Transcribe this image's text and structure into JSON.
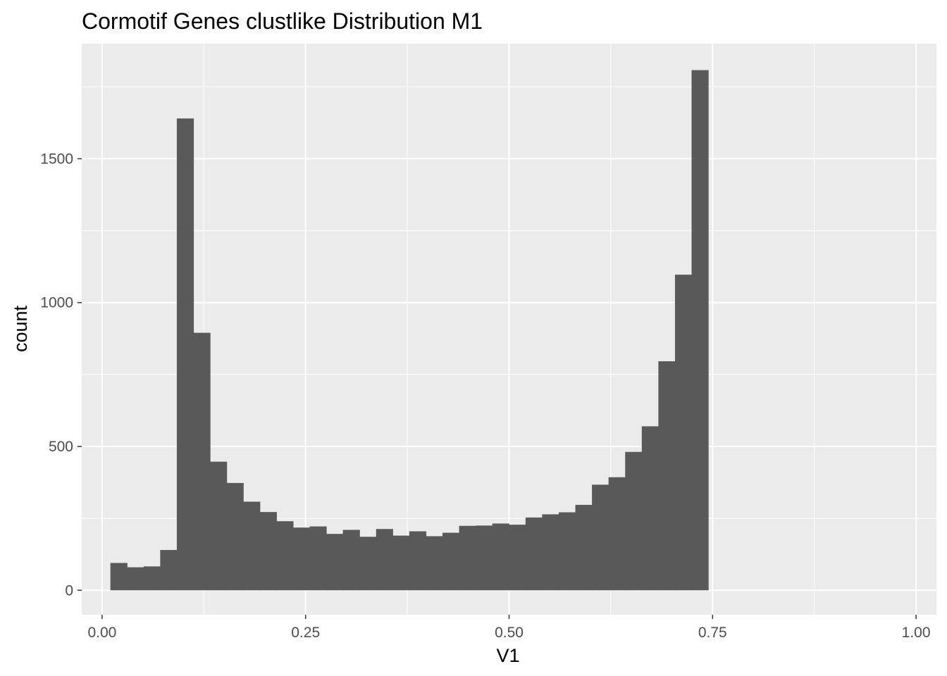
{
  "chart_data": {
    "type": "bar",
    "title": "Cormotif Genes clustlike Distribution M1",
    "xlabel": "V1",
    "ylabel": "count",
    "xlim": [
      -0.025,
      1.025
    ],
    "ylim": [
      -85,
      1900
    ],
    "x_ticks": [
      0.0,
      0.25,
      0.5,
      0.75,
      1.0
    ],
    "x_tick_labels": [
      "0.00",
      "0.25",
      "0.50",
      "0.75",
      "1.00"
    ],
    "y_ticks": [
      0,
      500,
      1000,
      1500
    ],
    "y_tick_labels": [
      "0",
      "500",
      "1000",
      "1500"
    ],
    "grid": true,
    "bin_width": 0.0204,
    "bins": [
      {
        "x0": 0.0102,
        "count": 95
      },
      {
        "x0": 0.0306,
        "count": 80
      },
      {
        "x0": 0.051,
        "count": 83
      },
      {
        "x0": 0.0714,
        "count": 140
      },
      {
        "x0": 0.0918,
        "count": 1640
      },
      {
        "x0": 0.1122,
        "count": 895
      },
      {
        "x0": 0.1326,
        "count": 447
      },
      {
        "x0": 0.153,
        "count": 373
      },
      {
        "x0": 0.1734,
        "count": 308
      },
      {
        "x0": 0.1938,
        "count": 272
      },
      {
        "x0": 0.2142,
        "count": 240
      },
      {
        "x0": 0.2346,
        "count": 218
      },
      {
        "x0": 0.255,
        "count": 222
      },
      {
        "x0": 0.2754,
        "count": 196
      },
      {
        "x0": 0.2958,
        "count": 210
      },
      {
        "x0": 0.3162,
        "count": 186
      },
      {
        "x0": 0.3366,
        "count": 213
      },
      {
        "x0": 0.357,
        "count": 190
      },
      {
        "x0": 0.3774,
        "count": 205
      },
      {
        "x0": 0.3978,
        "count": 188
      },
      {
        "x0": 0.4182,
        "count": 200
      },
      {
        "x0": 0.4386,
        "count": 224
      },
      {
        "x0": 0.459,
        "count": 225
      },
      {
        "x0": 0.4794,
        "count": 232
      },
      {
        "x0": 0.4998,
        "count": 228
      },
      {
        "x0": 0.5202,
        "count": 253
      },
      {
        "x0": 0.5406,
        "count": 264
      },
      {
        "x0": 0.561,
        "count": 271
      },
      {
        "x0": 0.5814,
        "count": 297
      },
      {
        "x0": 0.6018,
        "count": 367
      },
      {
        "x0": 0.6222,
        "count": 393
      },
      {
        "x0": 0.6426,
        "count": 481
      },
      {
        "x0": 0.663,
        "count": 570
      },
      {
        "x0": 0.6834,
        "count": 796
      },
      {
        "x0": 0.7038,
        "count": 1097
      },
      {
        "x0": 0.7242,
        "count": 1808
      }
    ],
    "colors": {
      "panel": "#ebebeb",
      "grid": "#ffffff",
      "bar": "#595959",
      "tick": "#333333"
    }
  }
}
